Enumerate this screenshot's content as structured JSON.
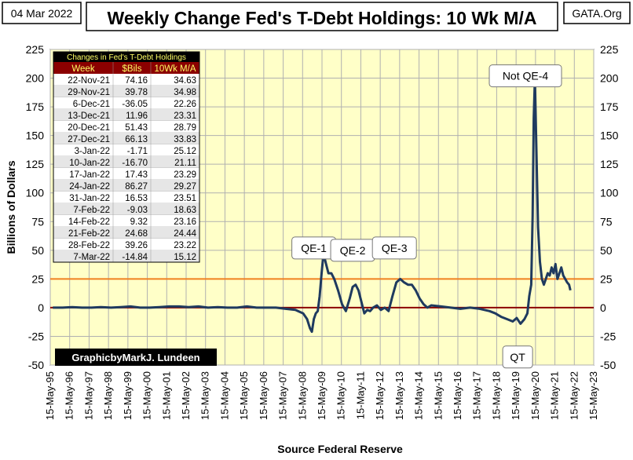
{
  "header": {
    "date": "04 Mar 2022",
    "title": "Weekly Change Fed's T-Debt Holdings: 10 Wk M/A",
    "brand": "GATA.Org"
  },
  "credit": "GraphicbyMarkJ. Lundeen",
  "chart_data": {
    "type": "line",
    "title": "Weekly Change Fed's T-Debt Holdings: 10 Wk M/A",
    "xlabel": "Source Federal Reserve",
    "ylabel": "Billions  of  Dollars",
    "ylim": [
      -50,
      225
    ],
    "yticks": [
      -50,
      -25,
      0,
      25,
      50,
      75,
      100,
      125,
      150,
      175,
      200,
      225
    ],
    "xticks": [
      "15-May-95",
      "15-May-96",
      "15-May-97",
      "15-May-98",
      "15-May-99",
      "15-May-00",
      "15-May-01",
      "15-May-02",
      "15-May-03",
      "15-May-04",
      "15-May-05",
      "15-May-06",
      "15-May-07",
      "15-May-08",
      "15-May-09",
      "15-May-10",
      "15-May-11",
      "15-May-12",
      "15-May-13",
      "15-May-14",
      "15-May-15",
      "15-May-16",
      "15-May-17",
      "15-May-18",
      "15-May-19",
      "15-May-20",
      "15-May-21",
      "15-May-22",
      "15-May-23"
    ],
    "xlim": [
      1995.37,
      2023.37
    ],
    "reference_lines": [
      {
        "y": 25,
        "color": "#f08020"
      },
      {
        "y": 0,
        "color": "#8b0000"
      }
    ],
    "series": [
      {
        "color": "#1f3a5f",
        "x": [
          1995.5,
          1996.0,
          1996.5,
          1997.0,
          1997.5,
          1998.0,
          1998.5,
          1999.0,
          1999.5,
          2000.0,
          2000.5,
          2001.0,
          2001.5,
          2002.0,
          2002.5,
          2003.0,
          2003.5,
          2004.0,
          2004.5,
          2005.0,
          2005.5,
          2006.0,
          2006.5,
          2007.0,
          2007.5,
          2008.0,
          2008.4,
          2008.6,
          2008.75,
          2008.85,
          2008.95,
          2009.05,
          2009.15,
          2009.25,
          2009.35,
          2009.45,
          2009.55,
          2009.7,
          2009.85,
          2010.0,
          2010.2,
          2010.4,
          2010.6,
          2010.8,
          2010.95,
          2011.1,
          2011.25,
          2011.4,
          2011.55,
          2011.7,
          2011.85,
          2012.0,
          2012.2,
          2012.4,
          2012.6,
          2012.8,
          2013.0,
          2013.2,
          2013.4,
          2013.6,
          2013.8,
          2014.0,
          2014.2,
          2014.4,
          2014.6,
          2014.8,
          2015.0,
          2015.5,
          2016.0,
          2016.5,
          2017.0,
          2017.5,
          2018.0,
          2018.3,
          2018.6,
          2018.9,
          2019.2,
          2019.4,
          2019.6,
          2019.8,
          2019.95,
          2020.05,
          2020.15,
          2020.22,
          2020.28,
          2020.34,
          2020.4,
          2020.5,
          2020.6,
          2020.7,
          2020.8,
          2020.9,
          2021.0,
          2021.1,
          2021.2,
          2021.3,
          2021.4,
          2021.5,
          2021.6,
          2021.7,
          2021.8,
          2021.9,
          2022.0,
          2022.1,
          2022.17
        ],
        "y": [
          0,
          0,
          0.5,
          0,
          0,
          0.5,
          0,
          0.5,
          1,
          0,
          0,
          0.5,
          1,
          1,
          0.5,
          1,
          0,
          0.5,
          0,
          0,
          1,
          0,
          0,
          0,
          -1,
          -2,
          -5,
          -10,
          -18,
          -21,
          -10,
          -5,
          -3,
          10,
          30,
          48,
          40,
          30,
          30,
          25,
          15,
          3,
          -3,
          8,
          18,
          20,
          15,
          5,
          -5,
          -2,
          -3,
          0,
          2,
          -2,
          0,
          -3,
          10,
          22,
          25,
          22,
          20,
          20,
          15,
          8,
          3,
          0,
          2,
          1,
          0,
          -1,
          0,
          -1,
          -3,
          -5,
          -8,
          -10,
          -12,
          -9,
          -14,
          -10,
          -5,
          10,
          20,
          80,
          165,
          200,
          150,
          70,
          40,
          25,
          20,
          25,
          30,
          28,
          35,
          30,
          38,
          25,
          30,
          35,
          28,
          25,
          22,
          20,
          15.12
        ]
      }
    ],
    "annotations": [
      {
        "text": "QE-1",
        "x": 2008.95,
        "y": 52
      },
      {
        "text": "QE-2",
        "x": 2010.95,
        "y": 50
      },
      {
        "text": "QE-3",
        "x": 2013.1,
        "y": 52
      },
      {
        "text": "Not QE-4",
        "x": 2019.85,
        "y": 202
      },
      {
        "text": "QT",
        "x": 2019.45,
        "y": -43
      }
    ],
    "table": {
      "title": "Changes in Fed's T-Debt Holdings",
      "columns": [
        "Week",
        "$Bils",
        "10Wk M/A"
      ],
      "rows": [
        [
          "22-Nov-21",
          "74.16",
          "34.63"
        ],
        [
          "29-Nov-21",
          "39.78",
          "34.98"
        ],
        [
          "6-Dec-21",
          "-36.05",
          "22.26"
        ],
        [
          "13-Dec-21",
          "11.96",
          "23.31"
        ],
        [
          "20-Dec-21",
          "51.43",
          "28.79"
        ],
        [
          "27-Dec-21",
          "66.13",
          "33.83"
        ],
        [
          "3-Jan-22",
          "-1.71",
          "25.12"
        ],
        [
          "10-Jan-22",
          "-16.70",
          "21.11"
        ],
        [
          "17-Jan-22",
          "17.43",
          "23.29"
        ],
        [
          "24-Jan-22",
          "86.27",
          "29.27"
        ],
        [
          "31-Jan-22",
          "16.53",
          "23.51"
        ],
        [
          "7-Feb-22",
          "-9.03",
          "18.63"
        ],
        [
          "14-Feb-22",
          "9.32",
          "23.16"
        ],
        [
          "21-Feb-22",
          "24.68",
          "24.44"
        ],
        [
          "28-Feb-22",
          "39.26",
          "23.22"
        ],
        [
          "7-Mar-22",
          "-14.84",
          "15.12"
        ]
      ]
    }
  },
  "colors": {
    "plot_bg": "#ffffc8",
    "grid": "#b0b0b0",
    "line": "#1f3a5f",
    "ref25": "#f08020",
    "ref0": "#8b0000",
    "table_header": "#000000",
    "table_header_text": "#ffff66",
    "table_shade": "#e6e6e6"
  }
}
